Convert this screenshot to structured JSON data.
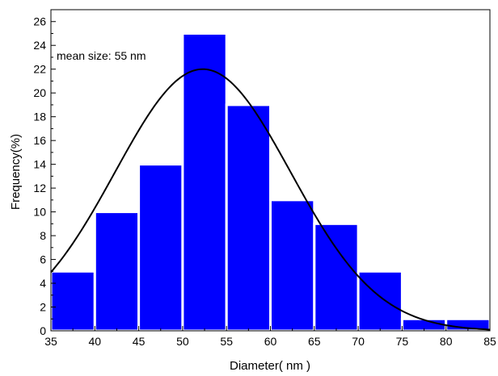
{
  "chart_data": {
    "type": "bar",
    "xlabel": "Diameter( nm )",
    "ylabel": "Frequency(%)",
    "annotation": "mean size: 55 nm",
    "bins": [
      {
        "start": 35,
        "end": 40,
        "value": 5
      },
      {
        "start": 40,
        "end": 45,
        "value": 10
      },
      {
        "start": 45,
        "end": 50,
        "value": 14
      },
      {
        "start": 50,
        "end": 55,
        "value": 25
      },
      {
        "start": 55,
        "end": 60,
        "value": 19
      },
      {
        "start": 60,
        "end": 65,
        "value": 11
      },
      {
        "start": 65,
        "end": 70,
        "value": 9
      },
      {
        "start": 70,
        "end": 75,
        "value": 5
      },
      {
        "start": 75,
        "end": 80,
        "value": 1
      },
      {
        "start": 80,
        "end": 85,
        "value": 1
      }
    ],
    "xlim": [
      35,
      85
    ],
    "ylim": [
      0,
      27
    ],
    "xticks": [
      35,
      40,
      45,
      50,
      55,
      60,
      65,
      70,
      75,
      80,
      85
    ],
    "yticks": [
      0,
      2,
      4,
      6,
      8,
      10,
      12,
      14,
      16,
      18,
      20,
      22,
      24,
      26
    ],
    "fit_curve": {
      "type": "gaussian",
      "center": 52.3,
      "sigma": 10.0,
      "peak": 22
    },
    "bar_color": "#0000ff",
    "curve_color": "#000000",
    "grid": false
  }
}
